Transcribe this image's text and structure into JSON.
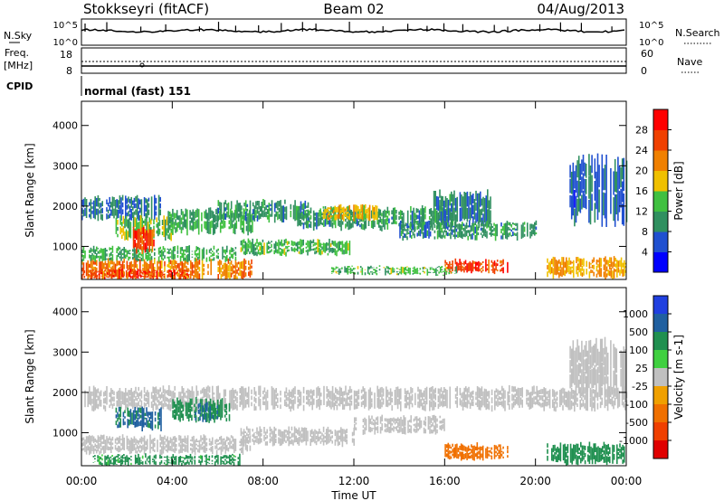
{
  "header": {
    "station": "Stokkseyri (fitACF)",
    "beam": "Beam 02",
    "date": "04/Aug/2013"
  },
  "noise_panel": {
    "left_label": "N.Sky",
    "left_ticks": [
      "10^5",
      "10^0"
    ],
    "right_label": "N.Search",
    "right_ticks": [
      "10^5",
      "10^0"
    ]
  },
  "freq_panel": {
    "label_top": "Freq.",
    "label_unit": "[MHz]",
    "left_ticks": [
      "18",
      "8"
    ],
    "right_label": "Nave",
    "right_ticks": [
      "60",
      "0"
    ],
    "cpid_label": "CPID",
    "cpid_text": "normal (fast) 151"
  },
  "colors": {
    "power": [
      "#0000ff",
      "#2050d0",
      "#309060",
      "#40c040",
      "#f0c000",
      "#f08000",
      "#f04000",
      "#ff0000"
    ],
    "velocity": [
      "#2040e0",
      "#2060a0",
      "#209050",
      "#40d040",
      "#c0c0c0",
      "#f0a000",
      "#f07000",
      "#f04000",
      "#e00000"
    ]
  },
  "chart_data": [
    {
      "type": "heatmap",
      "title": "",
      "xlabel": "Time UT",
      "ylabel": "Slant Range [km]",
      "x_ticks": [
        "00:00",
        "04:00",
        "08:00",
        "12:00",
        "16:00",
        "20:00",
        "00:00"
      ],
      "y_ticks": [
        1000,
        2000,
        3000,
        4000
      ],
      "xlim": [
        0,
        24
      ],
      "ylim": [
        180,
        4600
      ],
      "colorbar": {
        "label": "Power [dB]",
        "ticks": [
          4,
          8,
          12,
          16,
          20,
          24,
          28
        ],
        "range": [
          0,
          32
        ]
      },
      "regions": [
        {
          "x": [
            0.0,
            7.5
          ],
          "y": [
            200,
            650
          ],
          "value": 22
        },
        {
          "x": [
            0.1,
            4.8
          ],
          "y": [
            200,
            420
          ],
          "value": 27
        },
        {
          "x": [
            0.0,
            6.8
          ],
          "y": [
            650,
            980
          ],
          "value": 12
        },
        {
          "x": [
            0.0,
            3.5
          ],
          "y": [
            1700,
            2200
          ],
          "value": 8
        },
        {
          "x": [
            1.5,
            4.0
          ],
          "y": [
            1200,
            1700
          ],
          "value": 14
        },
        {
          "x": [
            2.2,
            3.2
          ],
          "y": [
            900,
            1450
          ],
          "value": 26
        },
        {
          "x": [
            3.8,
            7.5
          ],
          "y": [
            1350,
            1900
          ],
          "value": 12
        },
        {
          "x": [
            6.0,
            10.0
          ],
          "y": [
            1650,
            2100
          ],
          "value": 10
        },
        {
          "x": [
            7.0,
            12.0
          ],
          "y": [
            800,
            1150
          ],
          "value": 13
        },
        {
          "x": [
            9.5,
            16.5
          ],
          "y": [
            1450,
            1950
          ],
          "value": 11
        },
        {
          "x": [
            10.5,
            13.0
          ],
          "y": [
            1650,
            2000
          ],
          "value": 18
        },
        {
          "x": [
            15.5,
            18.0
          ],
          "y": [
            1550,
            2300
          ],
          "value": 9
        },
        {
          "x": [
            14.0,
            20.0
          ],
          "y": [
            1200,
            1600
          ],
          "value": 10
        },
        {
          "x": [
            16.0,
            18.8
          ],
          "y": [
            350,
            650
          ],
          "value": 26
        },
        {
          "x": [
            11.0,
            16.5
          ],
          "y": [
            300,
            500
          ],
          "value": 13
        },
        {
          "x": [
            20.5,
            24.0
          ],
          "y": [
            250,
            700
          ],
          "value": 20
        },
        {
          "x": [
            21.5,
            24.0
          ],
          "y": [
            1700,
            3100
          ],
          "value": 7
        }
      ]
    },
    {
      "type": "heatmap",
      "title": "",
      "xlabel": "Time UT",
      "ylabel": "Slant Range [km]",
      "x_ticks": [
        "00:00",
        "04:00",
        "08:00",
        "12:00",
        "16:00",
        "20:00",
        "00:00"
      ],
      "y_ticks": [
        1000,
        2000,
        3000,
        4000
      ],
      "xlim": [
        0,
        24
      ],
      "ylim": [
        180,
        4600
      ],
      "colorbar": {
        "label": "Velocity [m s-1]",
        "ticks": [
          1000,
          500,
          100,
          25,
          -25,
          -100,
          -500,
          -1000
        ]
      },
      "regions": [
        {
          "x": [
            0.0,
            7.5
          ],
          "y": [
            500,
            900
          ],
          "value": 0
        },
        {
          "x": [
            0.5,
            7.0
          ],
          "y": [
            200,
            450
          ],
          "value": 150
        },
        {
          "x": [
            0.0,
            24.0
          ],
          "y": [
            1600,
            2100
          ],
          "value": 0
        },
        {
          "x": [
            1.5,
            3.5
          ],
          "y": [
            1100,
            1600
          ],
          "value": 600
        },
        {
          "x": [
            4.0,
            6.5
          ],
          "y": [
            1300,
            1800
          ],
          "value": 200
        },
        {
          "x": [
            5.0,
            6.0
          ],
          "y": [
            1300,
            1700
          ],
          "value": 600
        },
        {
          "x": [
            7.0,
            12.0
          ],
          "y": [
            700,
            1100
          ],
          "value": 0
        },
        {
          "x": [
            12.0,
            16.0
          ],
          "y": [
            1000,
            1400
          ],
          "value": 0
        },
        {
          "x": [
            16.0,
            18.8
          ],
          "y": [
            350,
            700
          ],
          "value": -300
        },
        {
          "x": [
            20.5,
            24.0
          ],
          "y": [
            250,
            700
          ],
          "value": 300
        },
        {
          "x": [
            21.5,
            24.0
          ],
          "y": [
            2000,
            3200
          ],
          "value": 0
        }
      ]
    }
  ]
}
